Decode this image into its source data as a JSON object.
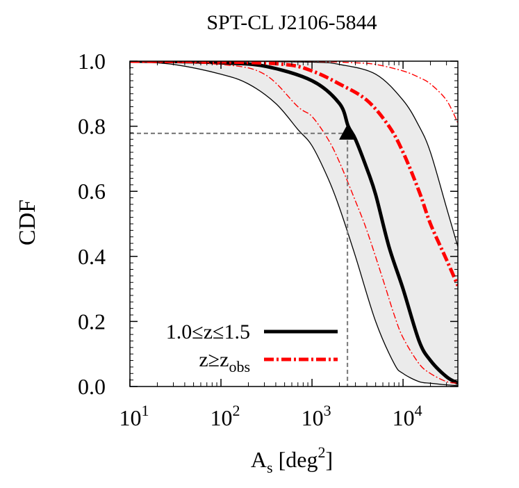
{
  "chart_data": {
    "type": "line",
    "title": "SPT-CL J2106-5844",
    "xlabel": {
      "main": "A",
      "sub": "s",
      "rest": " [deg",
      "sup": "2",
      "end": "]"
    },
    "ylabel": "CDF",
    "x_scale": "log",
    "xlim": [
      10,
      40000
    ],
    "ylim": [
      0,
      1.0
    ],
    "x_ticks": [
      {
        "value": 10,
        "base": "10",
        "exp": "1"
      },
      {
        "value": 100,
        "base": "10",
        "exp": "2"
      },
      {
        "value": 1000,
        "base": "10",
        "exp": "3"
      },
      {
        "value": 10000,
        "base": "10",
        "exp": "4"
      }
    ],
    "y_ticks": [
      {
        "value": 0.0,
        "label": "0.0"
      },
      {
        "value": 0.2,
        "label": "0.2"
      },
      {
        "value": 0.4,
        "label": "0.4"
      },
      {
        "value": 0.6,
        "label": "0.6"
      },
      {
        "value": 0.8,
        "label": "0.8"
      },
      {
        "value": 1.0,
        "label": "1.0"
      }
    ],
    "legend_position": "bottom-left",
    "legend": [
      {
        "text": "1.0≤z≤1.5",
        "style": "solid",
        "color": "#000000"
      },
      {
        "text": "z≥z",
        "sub": "obs",
        "style": "dashdot",
        "color": "#ff0000"
      }
    ],
    "colors": {
      "band": "#ebebeb",
      "main": "#000000",
      "red": "#ff0000",
      "marker_lines": "#808080"
    },
    "band": {
      "lower": {
        "x": [
          10,
          30,
          100,
          200,
          400,
          700,
          1000,
          1500,
          2000,
          3000,
          5000,
          8000,
          10000,
          15000,
          20000,
          30000,
          40000
        ],
        "y": [
          0.999,
          0.99,
          0.96,
          0.93,
          0.87,
          0.79,
          0.74,
          0.64,
          0.55,
          0.4,
          0.2,
          0.07,
          0.04,
          0.015,
          0.01,
          0.005,
          0.003
        ]
      },
      "upper": {
        "x": [
          10,
          100,
          1000,
          2000,
          5000,
          10000,
          15000,
          20000,
          30000,
          40000
        ],
        "y": [
          1.0,
          1.0,
          0.997,
          0.99,
          0.96,
          0.88,
          0.8,
          0.72,
          0.55,
          0.43
        ]
      }
    },
    "series": [
      {
        "legend_index": 0,
        "style": "solid",
        "width": "thick",
        "color": "#000000",
        "x": [
          10,
          30,
          100,
          300,
          1000,
          2000,
          2500,
          3000,
          4000,
          5000,
          7000,
          10000,
          15000,
          20000,
          30000,
          40000
        ],
        "y": [
          1.0,
          0.999,
          0.995,
          0.985,
          0.94,
          0.87,
          0.8,
          0.76,
          0.67,
          0.59,
          0.43,
          0.3,
          0.14,
          0.08,
          0.03,
          0.01
        ]
      },
      {
        "legend_index": 1,
        "style": "dashdot",
        "width": "thick",
        "color": "#ff0000",
        "x": [
          10,
          100,
          500,
          1000,
          2000,
          4000,
          7000,
          10000,
          15000,
          20000,
          30000,
          40000
        ],
        "y": [
          1.0,
          0.998,
          0.99,
          0.97,
          0.93,
          0.88,
          0.8,
          0.72,
          0.6,
          0.5,
          0.39,
          0.31
        ]
      },
      {
        "legend_index": null,
        "style": "dashdot",
        "width": "thin",
        "color": "#ff0000",
        "x": [
          10,
          100,
          300,
          700,
          1000,
          1500,
          2000,
          3000,
          4000,
          6000,
          8000,
          10000,
          15000,
          20000,
          30000,
          40000
        ],
        "y": [
          0.999,
          0.99,
          0.96,
          0.86,
          0.83,
          0.76,
          0.69,
          0.57,
          0.48,
          0.33,
          0.22,
          0.15,
          0.07,
          0.04,
          0.015,
          0.01
        ]
      },
      {
        "legend_index": null,
        "style": "dashdot",
        "width": "thin",
        "color": "#ff0000",
        "x": [
          10,
          100,
          1000,
          3000,
          5000,
          10000,
          15000,
          20000,
          30000,
          40000
        ],
        "y": [
          1.0,
          1.0,
          0.999,
          0.995,
          0.99,
          0.97,
          0.95,
          0.93,
          0.88,
          0.81
        ]
      }
    ],
    "marker": {
      "x": 2450,
      "y": 0.778,
      "shape": "triangle",
      "color": "#000000"
    },
    "guide_lines": {
      "style": "dashed",
      "color": "#808080",
      "x": 2450,
      "y": 0.778
    }
  }
}
